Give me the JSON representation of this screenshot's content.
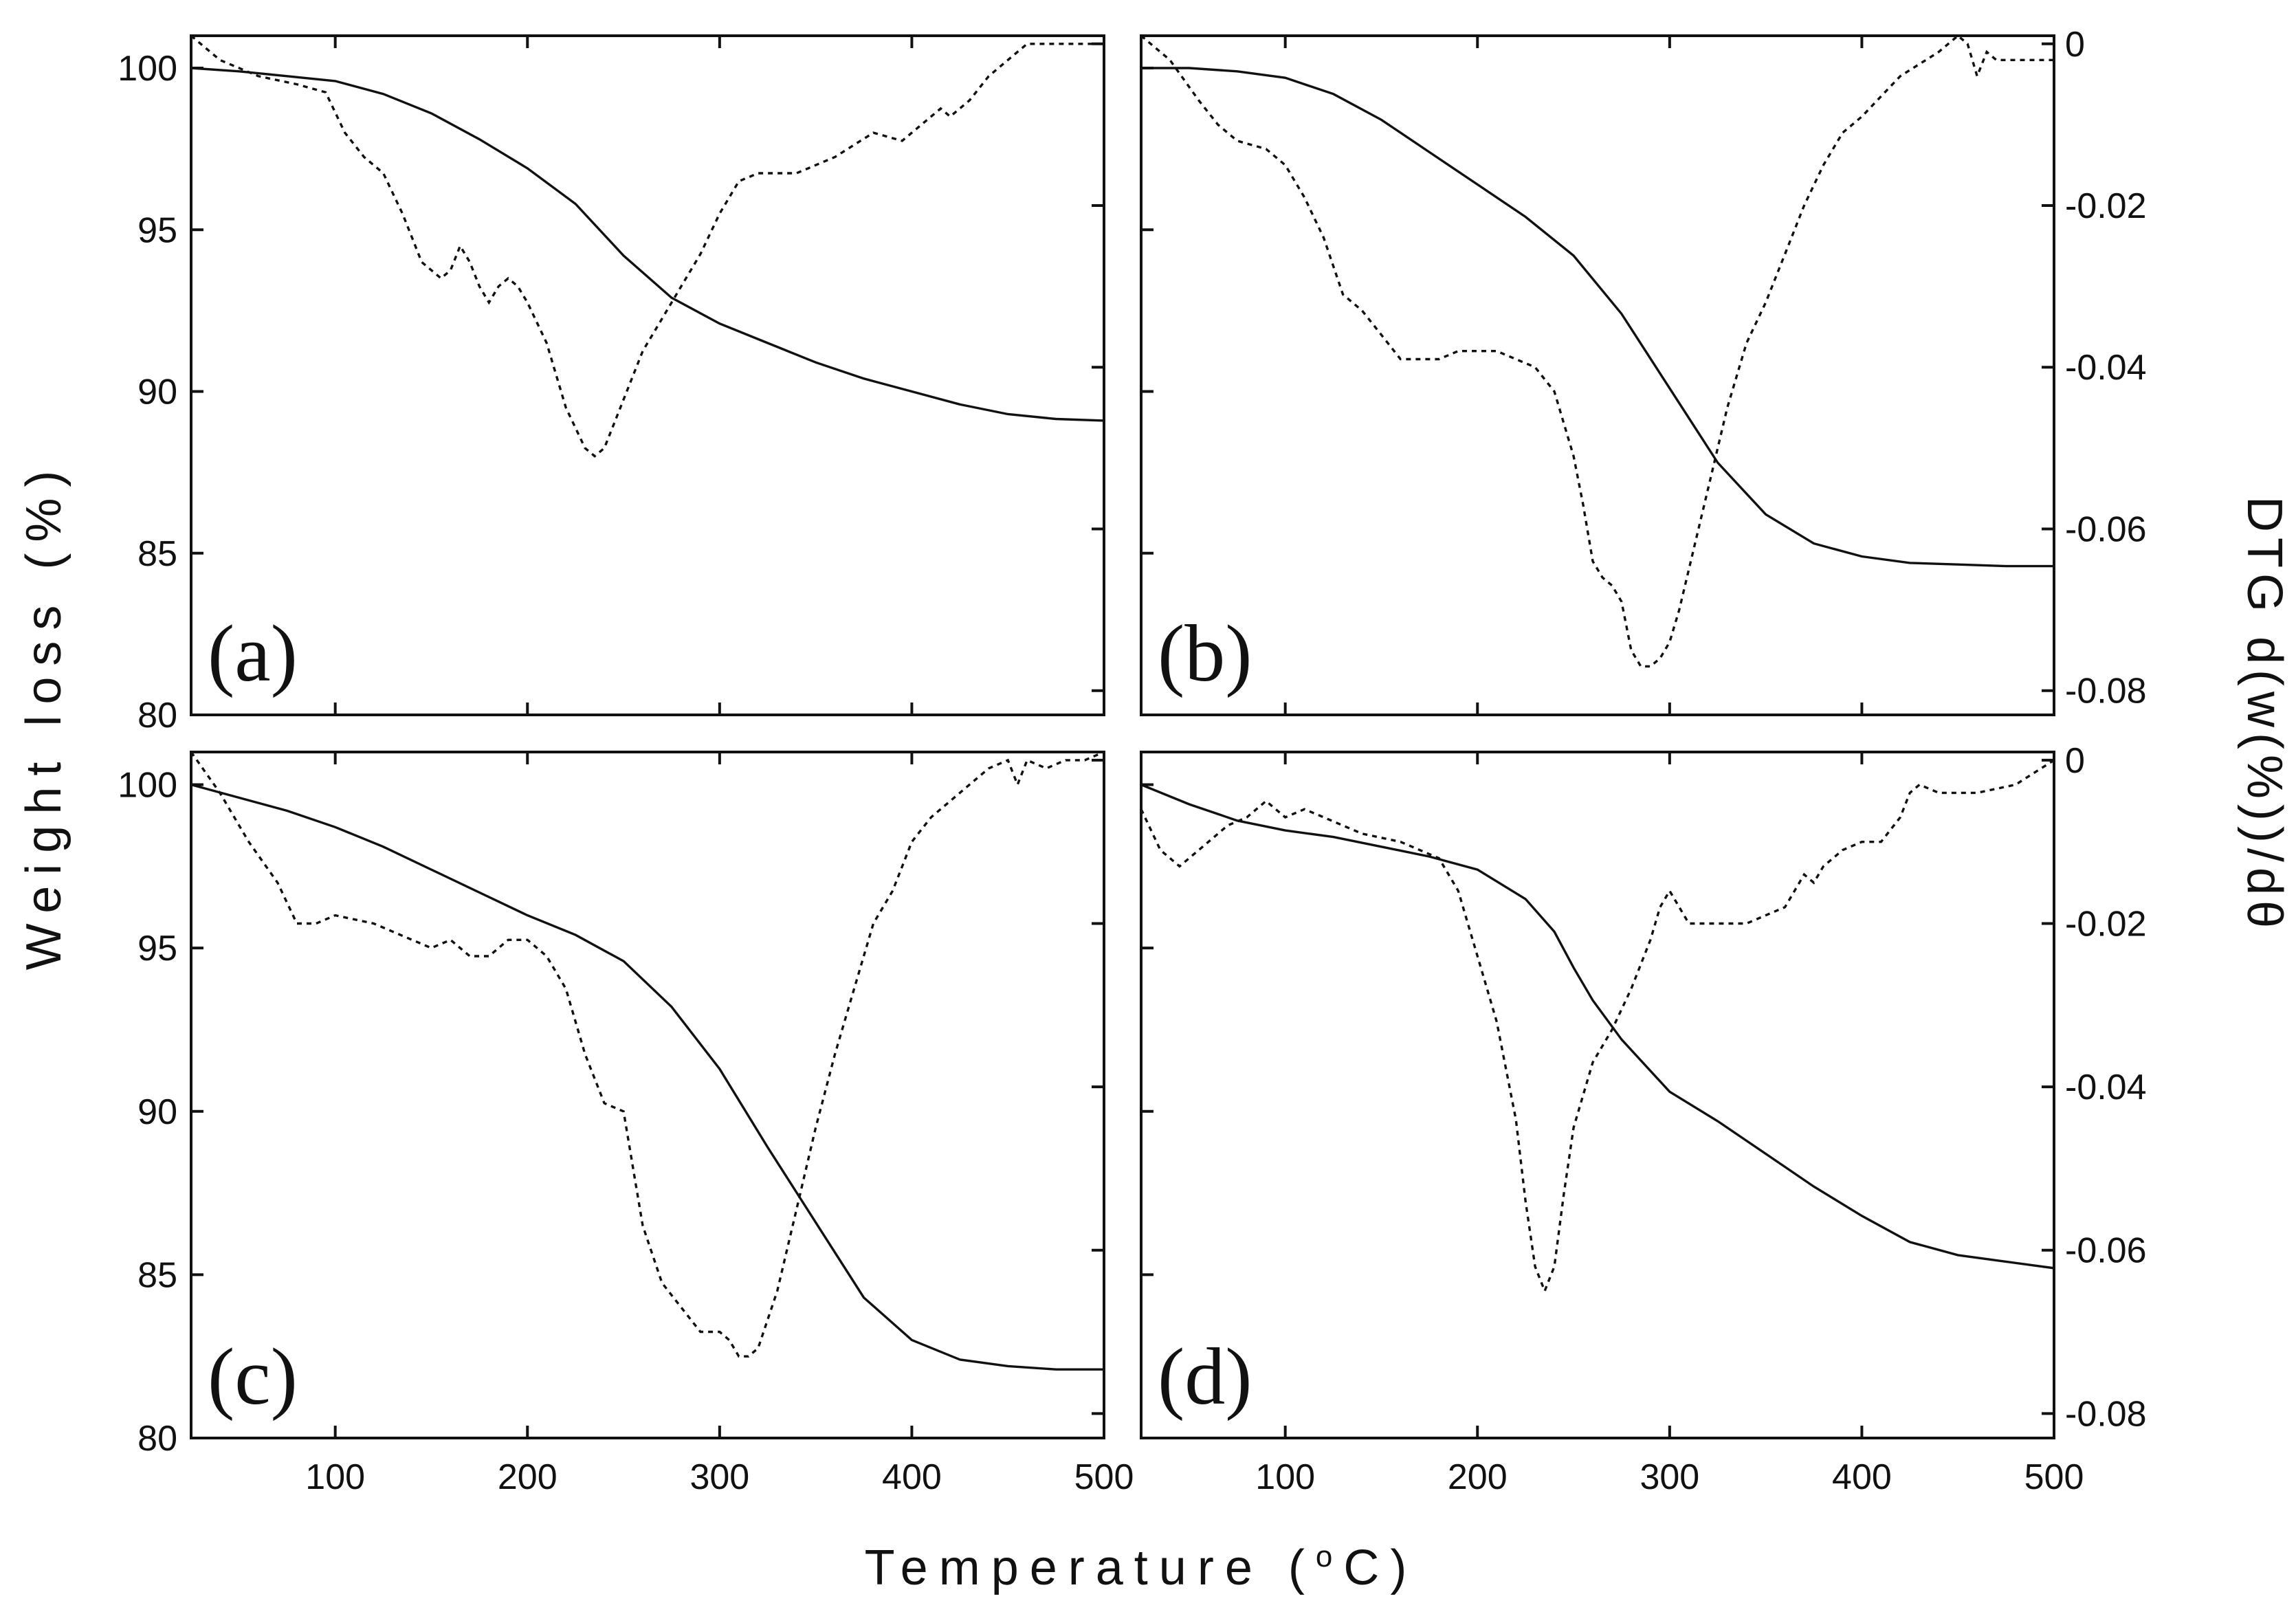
{
  "chart_data": {
    "type": "line",
    "xlabel": "Temperature (",
    "xlabel_sup": "o",
    "xlabel_end": "C)",
    "ylabel_left": "Weight loss (%)",
    "ylabel_right": "DTG d(w(%))/dθ",
    "xlim": [
      25,
      500
    ],
    "ylim_left": [
      80,
      101
    ],
    "ylim_right": [
      -0.083,
      0.001
    ],
    "x_ticks": [
      "100",
      "200",
      "300",
      "400",
      "500"
    ],
    "y_left_ticks": [
      "100",
      "95",
      "90",
      "85",
      "80"
    ],
    "y_right_ticks": [
      "0",
      "-0.02",
      "-0.04",
      "-0.06",
      "-0.08"
    ],
    "grid": false,
    "panels": [
      {
        "label": "(a)",
        "series": [
          {
            "style": "solid",
            "axis": "left",
            "x": [
              25,
              50,
              75,
              100,
              125,
              150,
              175,
              200,
              225,
              250,
              275,
              300,
              325,
              350,
              375,
              400,
              425,
              450,
              475,
              500
            ],
            "y": [
              100,
              99.9,
              99.75,
              99.6,
              99.2,
              98.6,
              97.8,
              96.9,
              95.8,
              94.2,
              92.9,
              92.1,
              91.5,
              90.9,
              90.4,
              90.0,
              89.6,
              89.3,
              89.15,
              89.1
            ]
          },
          {
            "style": "dotted",
            "axis": "right",
            "x": [
              25,
              40,
              60,
              80,
              95,
              105,
              115,
              125,
              135,
              145,
              155,
              160,
              165,
              170,
              175,
              180,
              185,
              190,
              195,
              200,
              210,
              220,
              230,
              235,
              240,
              250,
              260,
              270,
              280,
              290,
              300,
              310,
              320,
              340,
              360,
              380,
              395,
              405,
              415,
              420,
              430,
              440,
              450,
              460,
              480,
              500
            ],
            "y": [
              0.001,
              -0.002,
              -0.004,
              -0.005,
              -0.006,
              -0.011,
              -0.014,
              -0.016,
              -0.021,
              -0.027,
              -0.029,
              -0.028,
              -0.025,
              -0.027,
              -0.03,
              -0.032,
              -0.03,
              -0.029,
              -0.03,
              -0.032,
              -0.037,
              -0.045,
              -0.05,
              -0.051,
              -0.05,
              -0.044,
              -0.038,
              -0.034,
              -0.03,
              -0.026,
              -0.021,
              -0.017,
              -0.016,
              -0.016,
              -0.014,
              -0.011,
              -0.012,
              -0.01,
              -0.008,
              -0.009,
              -0.007,
              -0.004,
              -0.002,
              0.0,
              0.0,
              0.0
            ]
          }
        ]
      },
      {
        "label": "(b)",
        "series": [
          {
            "style": "solid",
            "axis": "left",
            "x": [
              25,
              50,
              75,
              100,
              125,
              150,
              175,
              200,
              225,
              250,
              275,
              300,
              325,
              350,
              375,
              400,
              425,
              450,
              475,
              500
            ],
            "y": [
              100,
              100,
              99.9,
              99.7,
              99.2,
              98.4,
              97.4,
              96.4,
              95.4,
              94.2,
              92.4,
              90.1,
              87.8,
              86.2,
              85.3,
              84.9,
              84.7,
              84.65,
              84.6,
              84.6
            ]
          },
          {
            "style": "dotted",
            "axis": "right",
            "x": [
              25,
              40,
              55,
              65,
              75,
              90,
              100,
              110,
              120,
              130,
              140,
              150,
              160,
              170,
              180,
              190,
              200,
              210,
              220,
              230,
              240,
              250,
              255,
              260,
              265,
              270,
              275,
              280,
              285,
              290,
              295,
              300,
              305,
              310,
              320,
              330,
              340,
              350,
              360,
              370,
              380,
              390,
              400,
              420,
              440,
              450,
              455,
              460,
              465,
              470,
              480,
              500
            ],
            "y": [
              0.001,
              -0.002,
              -0.007,
              -0.01,
              -0.012,
              -0.013,
              -0.015,
              -0.019,
              -0.024,
              -0.031,
              -0.033,
              -0.036,
              -0.039,
              -0.039,
              -0.039,
              -0.038,
              -0.038,
              -0.038,
              -0.039,
              -0.04,
              -0.043,
              -0.051,
              -0.057,
              -0.064,
              -0.066,
              -0.067,
              -0.069,
              -0.075,
              -0.077,
              -0.077,
              -0.076,
              -0.074,
              -0.07,
              -0.065,
              -0.055,
              -0.045,
              -0.037,
              -0.032,
              -0.026,
              -0.02,
              -0.015,
              -0.011,
              -0.009,
              -0.004,
              -0.001,
              0.001,
              0.0,
              -0.004,
              -0.001,
              -0.002,
              -0.002,
              -0.002
            ]
          }
        ]
      },
      {
        "label": "(c)",
        "series": [
          {
            "style": "solid",
            "axis": "left",
            "x": [
              25,
              50,
              75,
              100,
              125,
              150,
              175,
              200,
              225,
              250,
              275,
              300,
              325,
              350,
              375,
              400,
              425,
              450,
              475,
              500
            ],
            "y": [
              100,
              99.6,
              99.2,
              98.7,
              98.1,
              97.4,
              96.7,
              96.0,
              95.4,
              94.6,
              93.2,
              91.3,
              88.9,
              86.6,
              84.3,
              83.0,
              82.4,
              82.2,
              82.1,
              82.1
            ]
          },
          {
            "style": "dotted",
            "axis": "right",
            "x": [
              25,
              40,
              55,
              70,
              80,
              90,
              100,
              120,
              140,
              150,
              160,
              170,
              180,
              190,
              200,
              210,
              220,
              230,
              240,
              250,
              255,
              260,
              270,
              280,
              290,
              300,
              305,
              310,
              315,
              320,
              330,
              340,
              350,
              360,
              370,
              380,
              390,
              400,
              410,
              420,
              430,
              440,
              450,
              455,
              460,
              470,
              480,
              490,
              500
            ],
            "y": [
              0.001,
              -0.004,
              -0.01,
              -0.015,
              -0.02,
              -0.02,
              -0.019,
              -0.02,
              -0.022,
              -0.023,
              -0.022,
              -0.024,
              -0.024,
              -0.022,
              -0.022,
              -0.024,
              -0.028,
              -0.036,
              -0.042,
              -0.043,
              -0.05,
              -0.057,
              -0.064,
              -0.067,
              -0.07,
              -0.07,
              -0.071,
              -0.073,
              -0.073,
              -0.072,
              -0.065,
              -0.055,
              -0.045,
              -0.036,
              -0.028,
              -0.02,
              -0.016,
              -0.01,
              -0.007,
              -0.005,
              -0.003,
              -0.001,
              0.0,
              -0.003,
              0.0,
              -0.001,
              0.0,
              0.0,
              0.001
            ]
          }
        ]
      },
      {
        "label": "(d)",
        "series": [
          {
            "style": "solid",
            "axis": "left",
            "x": [
              25,
              50,
              75,
              100,
              125,
              150,
              175,
              200,
              225,
              240,
              250,
              260,
              275,
              300,
              325,
              350,
              375,
              400,
              425,
              450,
              475,
              500
            ],
            "y": [
              100,
              99.4,
              98.9,
              98.6,
              98.4,
              98.1,
              97.8,
              97.4,
              96.5,
              95.5,
              94.4,
              93.4,
              92.2,
              90.6,
              89.7,
              88.7,
              87.7,
              86.8,
              86.0,
              85.6,
              85.4,
              85.2
            ]
          },
          {
            "style": "dotted",
            "axis": "right",
            "x": [
              25,
              35,
              45,
              60,
              70,
              80,
              90,
              100,
              110,
              120,
              140,
              160,
              180,
              190,
              200,
              210,
              220,
              225,
              230,
              235,
              240,
              245,
              250,
              260,
              270,
              280,
              290,
              295,
              300,
              305,
              310,
              320,
              340,
              360,
              370,
              375,
              380,
              390,
              400,
              410,
              420,
              425,
              430,
              440,
              460,
              480,
              500
            ],
            "y": [
              -0.006,
              -0.011,
              -0.013,
              -0.01,
              -0.008,
              -0.007,
              -0.005,
              -0.007,
              -0.006,
              -0.007,
              -0.009,
              -0.01,
              -0.012,
              -0.016,
              -0.024,
              -0.032,
              -0.044,
              -0.054,
              -0.062,
              -0.065,
              -0.062,
              -0.053,
              -0.045,
              -0.037,
              -0.033,
              -0.028,
              -0.022,
              -0.018,
              -0.016,
              -0.018,
              -0.02,
              -0.02,
              -0.02,
              -0.018,
              -0.014,
              -0.015,
              -0.013,
              -0.011,
              -0.01,
              -0.01,
              -0.007,
              -0.004,
              -0.003,
              -0.004,
              -0.004,
              -0.003,
              0.0
            ]
          }
        ]
      }
    ]
  }
}
